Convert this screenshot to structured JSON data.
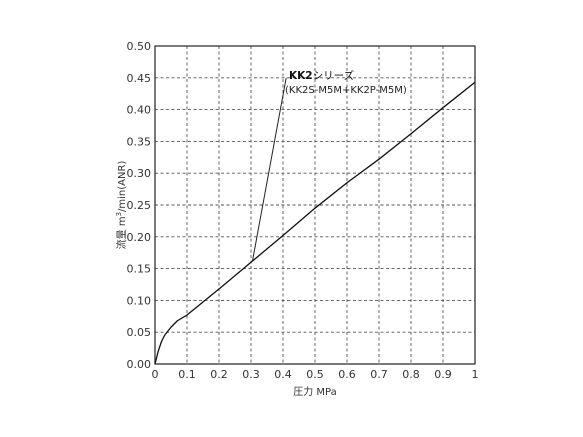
{
  "chart_data": {
    "type": "line",
    "xlabel": "圧力 MPa",
    "ylabel_prefix": "流量 m",
    "ylabel_sup": "3",
    "ylabel_suffix": "/min(ANR)",
    "xlim": [
      0,
      1
    ],
    "ylim": [
      0,
      0.5
    ],
    "x_ticks": [
      "0",
      "0.1",
      "0.2",
      "0.3",
      "0.4",
      "0.5",
      "0.6",
      "0.7",
      "0.8",
      "0.9",
      "1"
    ],
    "y_ticks": [
      "0.00",
      "0.05",
      "0.10",
      "0.15",
      "0.20",
      "0.25",
      "0.30",
      "0.35",
      "0.40",
      "0.45",
      "0.50"
    ],
    "grid": true,
    "series": [
      {
        "name": "KK2シリーズ",
        "x": [
          0,
          0.01,
          0.02,
          0.03,
          0.05,
          0.07,
          0.1,
          0.2,
          0.3,
          0.4,
          0.5,
          0.6,
          0.7,
          0.8,
          0.9,
          1.0
        ],
        "y": [
          0,
          0.02,
          0.035,
          0.045,
          0.058,
          0.068,
          0.077,
          0.118,
          0.16,
          0.202,
          0.245,
          0.285,
          0.322,
          0.362,
          0.403,
          0.443
        ]
      }
    ],
    "annotation": {
      "title_bold": "KK2",
      "title_rest": "シリーズ",
      "subtitle": "(KK2S-M5M+KK2P-M5M)",
      "pointer_from": [
        0.41,
        0.45
      ],
      "pointer_to": [
        0.305,
        0.163
      ]
    }
  }
}
